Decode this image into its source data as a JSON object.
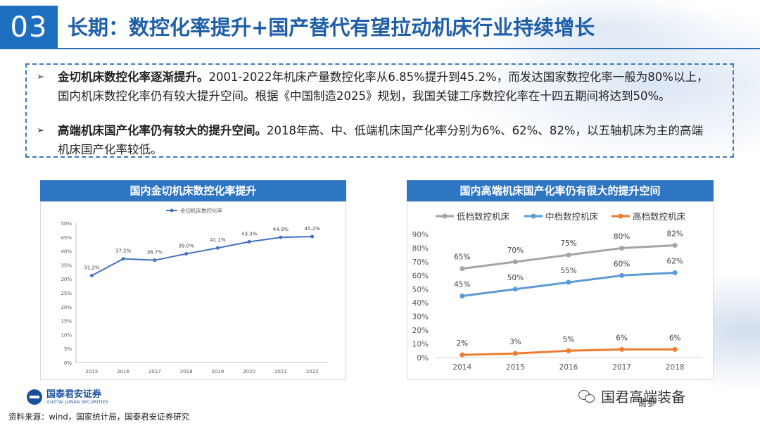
{
  "header": {
    "section_number": "03",
    "title": "长期：数控化率提升+国产替代有望拉动机床行业持续增长"
  },
  "bullets": [
    {
      "marker": "➢",
      "bold": "金切机床数控化率逐渐提升。",
      "text": "2001-2022年机床产量数控化率从6.85%提升到45.2%，而发达国家数控化率一般为80%以上，国内机床数控化率仍有较大提升空间。根据《中国制造2025》规划，我国关键工序数控化率在十四五期间将达到50%。"
    },
    {
      "marker": "➢",
      "bold": "高端机床国产化率仍有较大的提升空间。",
      "text": "2018年高、中、低端机床国产化率分别为6%、62%、82%，以五轴机床为主的高端机床国产化率较低。"
    }
  ],
  "chart_data": [
    {
      "type": "line",
      "title": "国内金切机床数控化率提升",
      "legend": "金切机床数控化率",
      "x": [
        "2015",
        "2016",
        "2017",
        "2018",
        "2019",
        "2020",
        "2021",
        "2022"
      ],
      "values": [
        31.2,
        37.2,
        36.7,
        39.0,
        41.1,
        43.3,
        44.9,
        45.2
      ],
      "data_labels": [
        "31.2%",
        "37.2%",
        "36.7%",
        "39.0%",
        "41.1%",
        "43.3%",
        "44.9%",
        "45.2%"
      ],
      "ylim": [
        0,
        50
      ],
      "yticks": [
        "0%",
        "5%",
        "10%",
        "15%",
        "20%",
        "25%",
        "30%",
        "35%",
        "40%",
        "45%",
        "50%"
      ],
      "color": "#4472c4"
    },
    {
      "type": "line",
      "title": "国内高端机床国产化率仍有很大的提升空间",
      "x": [
        "2014",
        "2015",
        "2016",
        "2017",
        "2018"
      ],
      "ylim": [
        0,
        90
      ],
      "yticks": [
        "0%",
        "10%",
        "20%",
        "30%",
        "40%",
        "50%",
        "60%",
        "70%",
        "80%",
        "90%"
      ],
      "series": [
        {
          "name": "低档数控机床",
          "values": [
            65,
            70,
            75,
            80,
            82
          ],
          "labels": [
            "65%",
            "70%",
            "75%",
            "80%",
            "82%"
          ],
          "color": "#a5a5a5"
        },
        {
          "name": "中档数控机床",
          "values": [
            45,
            50,
            55,
            60,
            62
          ],
          "labels": [
            "45%",
            "50%",
            "55%",
            "60%",
            "62%"
          ],
          "color": "#5b9bd5"
        },
        {
          "name": "高档数控机床",
          "values": [
            2,
            3,
            5,
            6,
            6
          ],
          "labels": [
            "2%",
            "3%",
            "5%",
            "6%",
            "6%"
          ],
          "color": "#ed7d31"
        }
      ]
    }
  ],
  "footer": {
    "logo_cn": "国泰君安证券",
    "logo_en": "GUOTAI JUNAN SECURITIES",
    "source": "资料来源：wind，国家统计局，国泰君安证券研究",
    "watermark": "国君高端装备",
    "watermark_partial": "请参"
  }
}
